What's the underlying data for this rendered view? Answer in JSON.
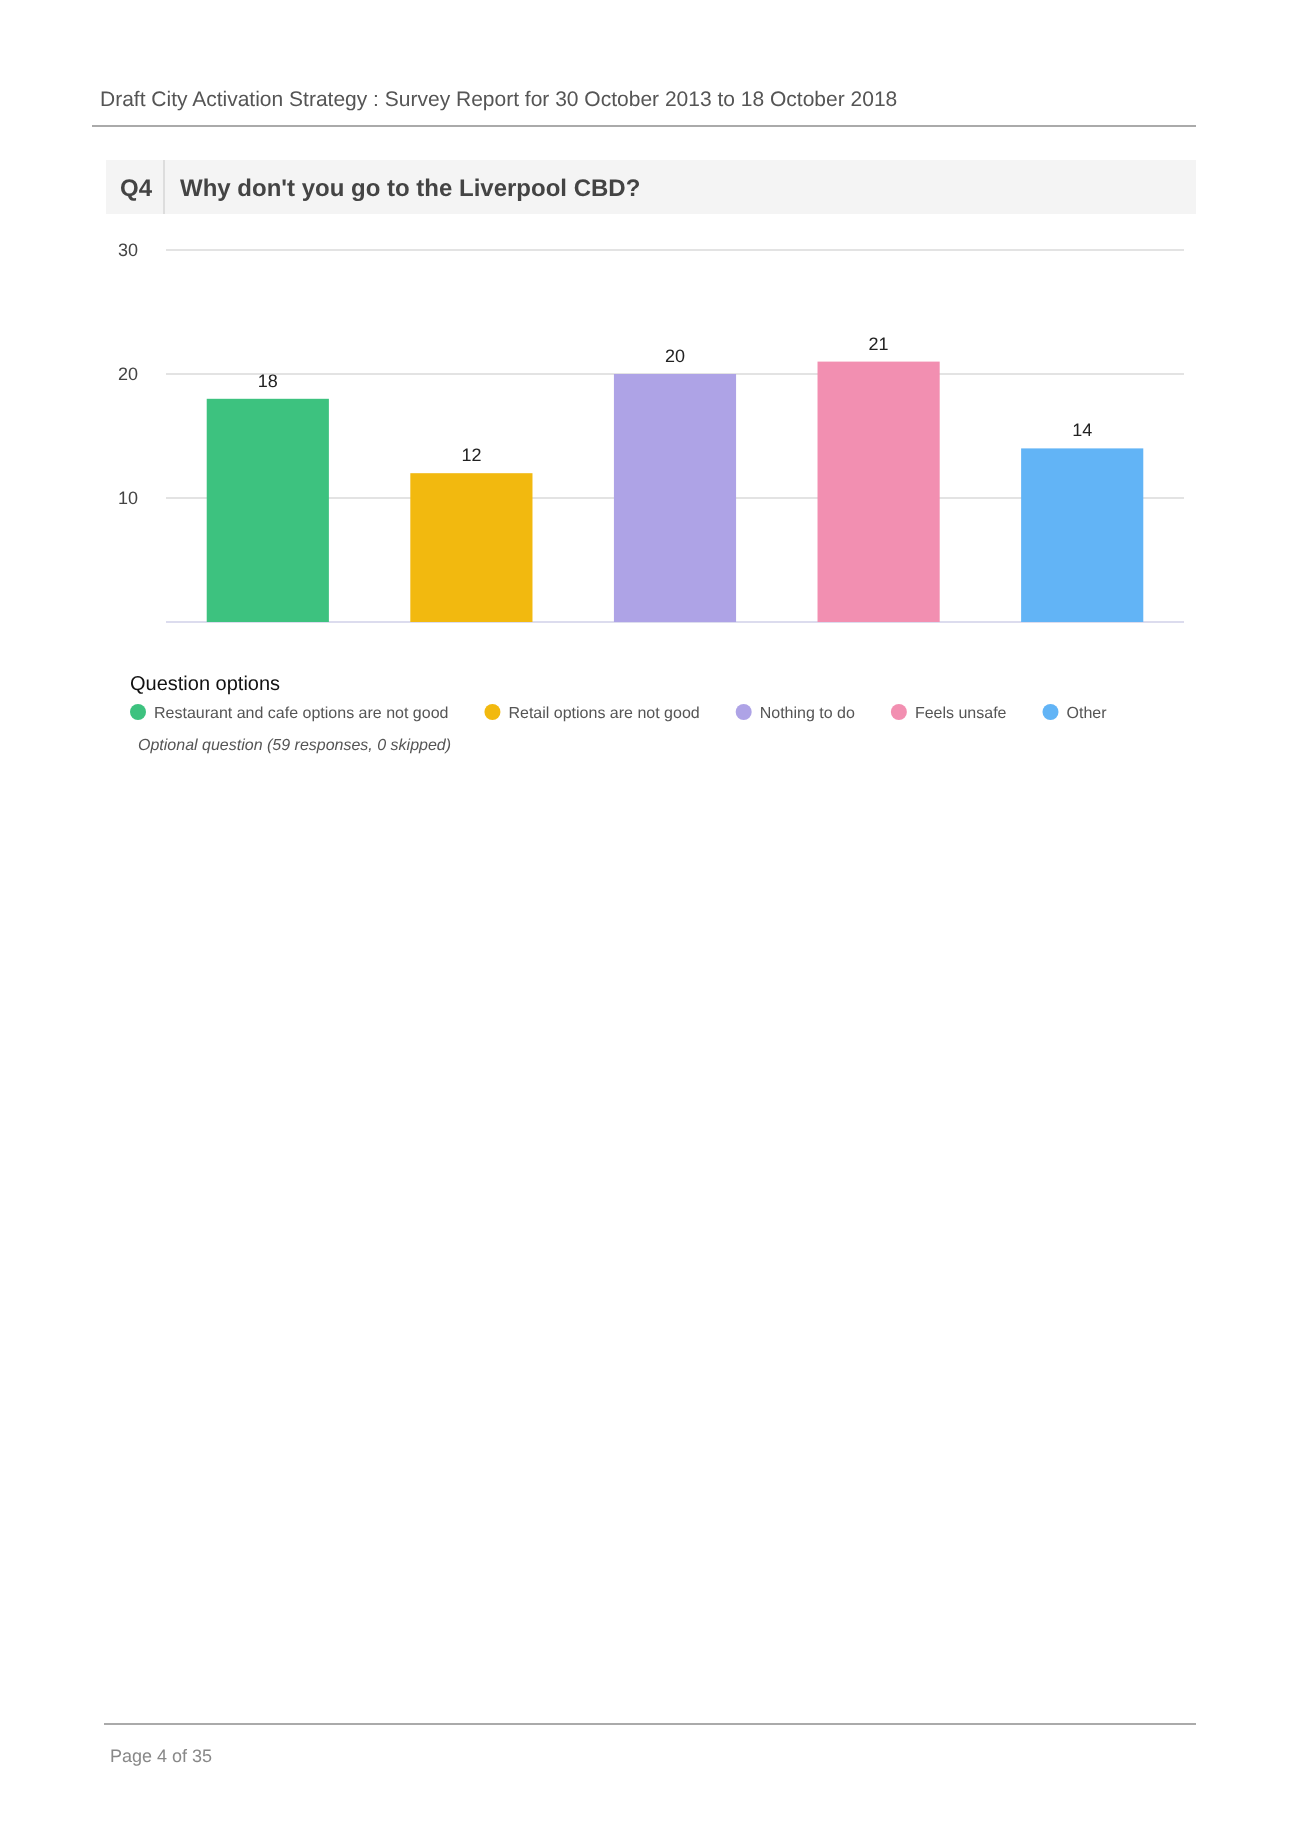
{
  "chart_data": {
    "type": "bar",
    "title": "Why don't you go to the Liverpool CBD?",
    "subtitle": "Q4",
    "legend_title": "Question options",
    "categories": [
      null,
      null,
      null,
      null,
      null
    ],
    "series": [
      {
        "name": "Restaurant and cafe options are not good",
        "color": "#3dc27f",
        "values": [
          18,
          null,
          null,
          null,
          null
        ]
      },
      {
        "name": "Retail options are not good",
        "color": "#f2b90f",
        "values": [
          null,
          12,
          null,
          null,
          null
        ]
      },
      {
        "name": "Nothing to do",
        "color": "#aea3e6",
        "values": [
          null,
          null,
          20,
          null,
          null
        ]
      },
      {
        "name": "Feels unsafe",
        "color": "#f28fb1",
        "values": [
          null,
          null,
          null,
          21,
          null
        ]
      },
      {
        "name": "Other",
        "color": "#62b4f6",
        "values": [
          null,
          null,
          null,
          null,
          14
        ]
      }
    ],
    "ylim": [
      0,
      30
    ],
    "yticks": [
      10,
      20,
      30
    ],
    "grid": "y",
    "data_labels": true,
    "legend": "bottom",
    "annotations": [
      "Draft City Activation Strategy : Survey Report for 30 October 2013 to 18 October 2018",
      "Optional question (59 responses, 0 skipped)",
      "Page 4 of 35"
    ]
  }
}
